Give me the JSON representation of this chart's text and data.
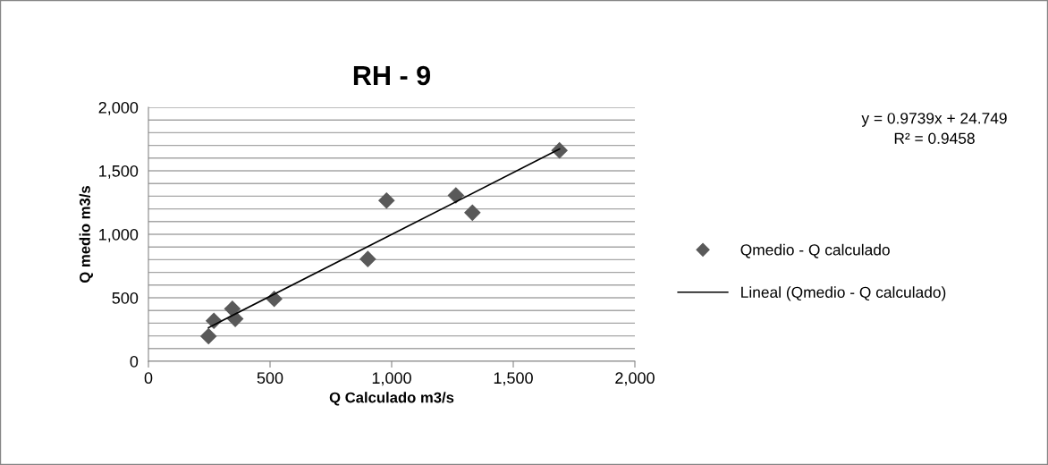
{
  "chart_data": {
    "type": "scatter",
    "title": "RH - 9",
    "xlabel": "Q Calculado m3/s",
    "ylabel": "Q medio m3/s",
    "annotations": [
      "y = 0.9739x + 24.749\nR² = 0.9458"
    ],
    "series": [
      {
        "name": "Qmedio - Q calculado",
        "color": "#595959",
        "marker": "diamond",
        "x": [
          247,
          269,
          345,
          357,
          517,
          902,
          979,
          1264,
          1332,
          1690
        ],
        "values": [
          197,
          319,
          413,
          334,
          491,
          805,
          1266,
          1306,
          1170,
          1661
        ]
      },
      {
        "name": "Lineal (Qmedio - Q calculado)",
        "type": "line",
        "color": "#000000",
        "marker": "none",
        "line_style": "solid",
        "x": [
          247,
          1690
        ],
        "values": [
          265,
          1671
        ]
      }
    ],
    "xlim": [
      0,
      2000
    ],
    "xticks": [
      {
        "value": 0,
        "label": "0"
      },
      {
        "value": 500,
        "label": "500"
      },
      {
        "value": 1000,
        "label": "1,000"
      },
      {
        "value": 1500,
        "label": "1,500"
      },
      {
        "value": 2000,
        "label": "2,000"
      }
    ],
    "ylim": [
      0,
      2000
    ],
    "yticks": [
      {
        "value": 0,
        "label": "0"
      },
      {
        "value": 100,
        "label": null
      },
      {
        "value": 200,
        "label": null
      },
      {
        "value": 300,
        "label": null
      },
      {
        "value": 400,
        "label": null
      },
      {
        "value": 500,
        "label": "500"
      },
      {
        "value": 600,
        "label": null
      },
      {
        "value": 700,
        "label": null
      },
      {
        "value": 800,
        "label": null
      },
      {
        "value": 900,
        "label": null
      },
      {
        "value": 1000,
        "label": "1,000"
      },
      {
        "value": 1100,
        "label": null
      },
      {
        "value": 1200,
        "label": null
      },
      {
        "value": 1300,
        "label": null
      },
      {
        "value": 1400,
        "label": null
      },
      {
        "value": 1500,
        "label": "1,500"
      },
      {
        "value": 1600,
        "label": null
      },
      {
        "value": 1700,
        "label": null
      },
      {
        "value": 1800,
        "label": null
      },
      {
        "value": 1900,
        "label": null
      },
      {
        "value": 2000,
        "label": "2,000"
      }
    ],
    "grid": "y",
    "legend": "right"
  }
}
